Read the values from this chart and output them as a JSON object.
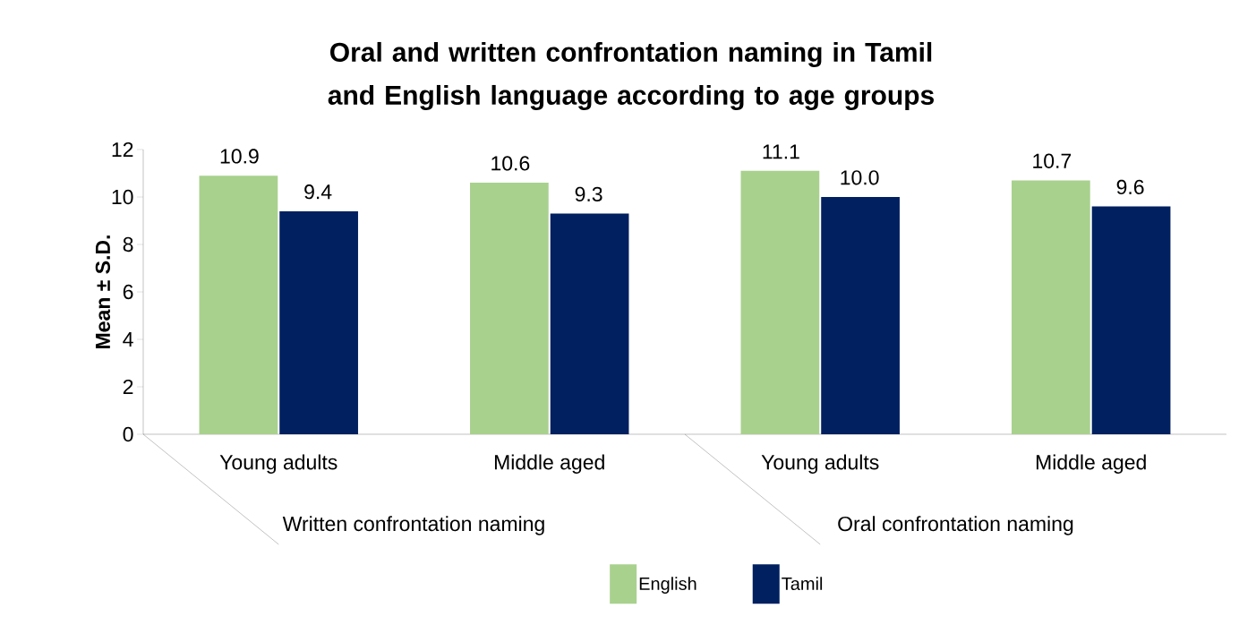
{
  "chart_data": {
    "type": "bar",
    "title": "Oral and written confrontation naming in Tamil and English language according to age groups",
    "ylabel": "Mean ± S.D.",
    "categories": [
      "Young adults",
      "Middle aged",
      "Young adults",
      "Middle aged"
    ],
    "annotations": [
      "Written confrontation naming",
      "Oral confrontation naming"
    ],
    "series": [
      {
        "name": "English",
        "color": "#a9d18e",
        "values": [
          10.9,
          10.6,
          11.1,
          10.7
        ],
        "value_labels": [
          "10.9",
          "10.6",
          "11.1",
          "10.7"
        ]
      },
      {
        "name": "Tamil",
        "color": "#002060",
        "values": [
          9.4,
          9.3,
          10.0,
          9.6
        ],
        "value_labels": [
          "9.4",
          "9.3",
          "10.0",
          "9.6"
        ]
      }
    ],
    "ylim": [
      0,
      12
    ],
    "yticks": [
      0,
      2,
      4,
      6,
      8,
      10,
      12
    ],
    "grid": false,
    "legend": "bottom"
  }
}
